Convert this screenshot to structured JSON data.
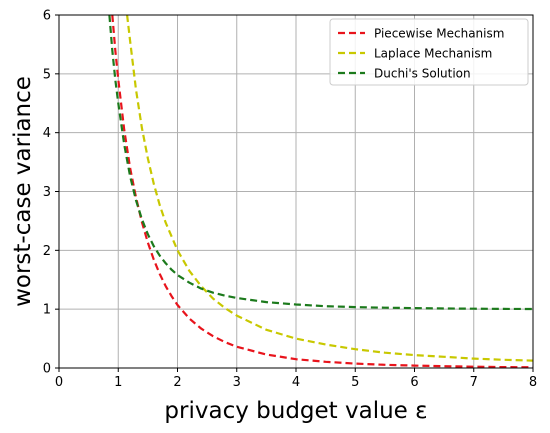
{
  "chart_data": {
    "type": "line",
    "xlabel": "privacy budget value ε",
    "ylabel": "worst-case variance",
    "xlim": [
      0,
      8
    ],
    "ylim": [
      0,
      6
    ],
    "xticks": [
      "0",
      "1",
      "2",
      "3",
      "4",
      "5",
      "6",
      "7",
      "8"
    ],
    "yticks": [
      "0",
      "1",
      "2",
      "3",
      "4",
      "5",
      "6"
    ],
    "grid": true,
    "legend_position": "top-right",
    "line_style": "dashed",
    "series": [
      {
        "name": "Piecewise Mechanism",
        "color": "#e8141c",
        "x": [
          0.9,
          0.95,
          1.0,
          1.1,
          1.2,
          1.3,
          1.4,
          1.5,
          1.6,
          1.7,
          1.8,
          1.9,
          2.0,
          2.2,
          2.4,
          2.6,
          2.8,
          3.0,
          3.5,
          4.0,
          4.5,
          5.0,
          5.5,
          6.0,
          6.5,
          7.0,
          7.5,
          8.0
        ],
        "y": [
          6.0,
          5.4,
          4.9,
          4.05,
          3.4,
          2.9,
          2.48,
          2.13,
          1.84,
          1.6,
          1.39,
          1.22,
          1.07,
          0.84,
          0.67,
          0.54,
          0.44,
          0.36,
          0.23,
          0.15,
          0.105,
          0.075,
          0.055,
          0.04,
          0.03,
          0.022,
          0.016,
          0.012
        ]
      },
      {
        "name": "Laplace Mechanism",
        "color": "#c8c800",
        "x": [
          1.15,
          1.2,
          1.3,
          1.4,
          1.5,
          1.6,
          1.7,
          1.8,
          2.0,
          2.2,
          2.4,
          2.6,
          2.8,
          3.0,
          3.5,
          4.0,
          4.5,
          5.0,
          5.5,
          6.0,
          6.5,
          7.0,
          7.5,
          8.0
        ],
        "y": [
          6.0,
          5.56,
          4.73,
          4.08,
          3.56,
          3.13,
          2.77,
          2.47,
          2.0,
          1.65,
          1.39,
          1.18,
          1.02,
          0.89,
          0.65,
          0.5,
          0.4,
          0.32,
          0.26,
          0.22,
          0.19,
          0.16,
          0.14,
          0.125
        ]
      },
      {
        "name": "Duchi's Solution",
        "color": "#1c7a1c",
        "x": [
          0.85,
          0.9,
          0.95,
          1.0,
          1.1,
          1.2,
          1.3,
          1.4,
          1.5,
          1.6,
          1.7,
          1.8,
          1.9,
          2.0,
          2.2,
          2.4,
          2.6,
          2.8,
          3.0,
          3.5,
          4.0,
          4.5,
          5.0,
          5.5,
          6.0,
          6.5,
          7.0,
          7.5,
          8.0
        ],
        "y": [
          6.0,
          5.4,
          4.9,
          4.5,
          3.8,
          3.26,
          2.85,
          2.53,
          2.27,
          2.07,
          1.91,
          1.78,
          1.67,
          1.58,
          1.45,
          1.35,
          1.28,
          1.23,
          1.19,
          1.12,
          1.08,
          1.05,
          1.035,
          1.025,
          1.018,
          1.012,
          1.008,
          1.005,
          1.003
        ]
      }
    ]
  }
}
